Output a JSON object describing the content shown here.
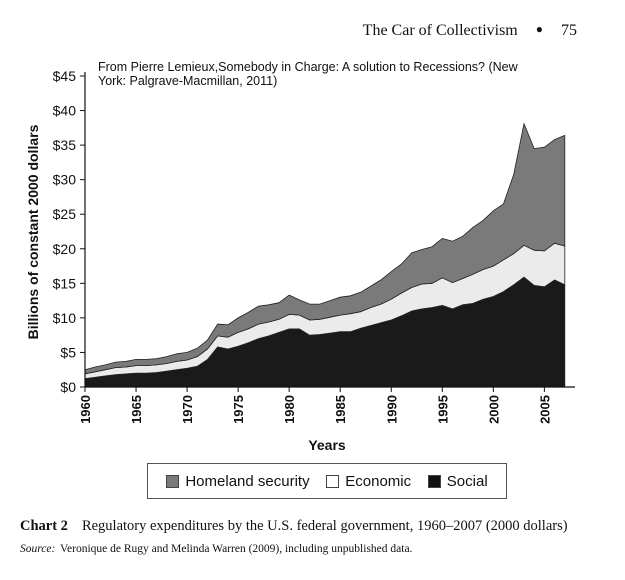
{
  "header": {
    "running_title": "The Car of Collectivism",
    "page_number": "75"
  },
  "chart_data": {
    "type": "area",
    "stacked": true,
    "annotation": "From Pierre Lemieux,Somebody in Charge: A solution to Recessions? (New York: Palgrave-Macmillan, 2011)",
    "annotation_lines": [
      "From Pierre Lemieux,Somebody in Charge: A solution to Recessions? (New",
      "York: Palgrave-Macmillan, 2011)"
    ],
    "xlabel": "Years",
    "ylabel": "Billions of constant 2000 dollars",
    "xlim": [
      1960,
      2008
    ],
    "ylim": [
      0,
      45
    ],
    "x_ticks": [
      1960,
      1965,
      1970,
      1975,
      1980,
      1985,
      1990,
      1995,
      2000,
      2005
    ],
    "y_ticks": [
      0,
      5,
      10,
      15,
      20,
      25,
      30,
      35,
      40,
      45
    ],
    "y_tick_labels": [
      "$0",
      "$5",
      "$10",
      "$15",
      "$20",
      "$25",
      "$30",
      "$35",
      "$40",
      "$45"
    ],
    "x": [
      1960,
      1961,
      1962,
      1963,
      1964,
      1965,
      1966,
      1967,
      1968,
      1969,
      1970,
      1971,
      1972,
      1973,
      1974,
      1975,
      1976,
      1977,
      1978,
      1979,
      1980,
      1981,
      1982,
      1983,
      1984,
      1985,
      1986,
      1987,
      1988,
      1989,
      1990,
      1991,
      1992,
      1993,
      1994,
      1995,
      1996,
      1997,
      1998,
      1999,
      2000,
      2001,
      2002,
      2003,
      2004,
      2005,
      2006,
      2007
    ],
    "series": [
      {
        "name": "Social",
        "color": "#1a1a1a",
        "values": [
          1.2,
          1.4,
          1.6,
          1.8,
          1.9,
          2.0,
          2.0,
          2.1,
          2.3,
          2.5,
          2.7,
          3.0,
          4.0,
          5.8,
          5.5,
          5.9,
          6.4,
          7.0,
          7.4,
          7.9,
          8.4,
          8.4,
          7.5,
          7.6,
          7.8,
          8.0,
          8.0,
          8.5,
          8.9,
          9.3,
          9.7,
          10.3,
          11.0,
          11.3,
          11.5,
          11.8,
          11.3,
          11.9,
          12.1,
          12.7,
          13.1,
          13.8,
          14.8,
          15.9,
          14.7,
          14.5,
          15.5,
          14.8
        ]
      },
      {
        "name": "Economic",
        "color": "#ebebeb",
        "values": [
          0.7,
          0.8,
          0.9,
          1.0,
          1.0,
          1.1,
          1.1,
          1.1,
          1.1,
          1.2,
          1.2,
          1.4,
          1.5,
          1.6,
          1.7,
          2.0,
          2.0,
          2.1,
          2.0,
          1.9,
          2.1,
          2.0,
          2.2,
          2.2,
          2.3,
          2.4,
          2.6,
          2.4,
          2.6,
          2.7,
          3.0,
          3.3,
          3.4,
          3.6,
          3.5,
          4.0,
          3.8,
          3.8,
          4.2,
          4.3,
          4.4,
          4.6,
          4.5,
          4.6,
          5.1,
          5.2,
          5.3,
          5.6
        ]
      },
      {
        "name": "Homeland security",
        "color": "#7a7a7a",
        "values": [
          0.6,
          0.7,
          0.7,
          0.8,
          0.8,
          0.9,
          0.9,
          0.9,
          1.0,
          1.1,
          1.1,
          1.2,
          1.3,
          1.7,
          1.8,
          2.1,
          2.4,
          2.6,
          2.5,
          2.4,
          2.8,
          2.2,
          2.3,
          2.2,
          2.4,
          2.6,
          2.6,
          2.8,
          3.1,
          3.5,
          4.0,
          4.2,
          5.0,
          5.0,
          5.3,
          5.7,
          6.0,
          6.1,
          6.8,
          7.1,
          8.0,
          8.1,
          11.5,
          17.6,
          14.7,
          15.0,
          15.0,
          16.0
        ]
      }
    ],
    "legend": [
      "Homeland security",
      "Economic",
      "Social"
    ],
    "legend_position": "bottom"
  },
  "caption": {
    "label": "Chart 2",
    "text": "Regulatory expenditures by the U.S. federal government, 1960–2007 (2000 dollars)",
    "source_label": "Source:",
    "source_text": "Veronique de Rugy and Melinda Warren (2009), including unpublished data."
  }
}
